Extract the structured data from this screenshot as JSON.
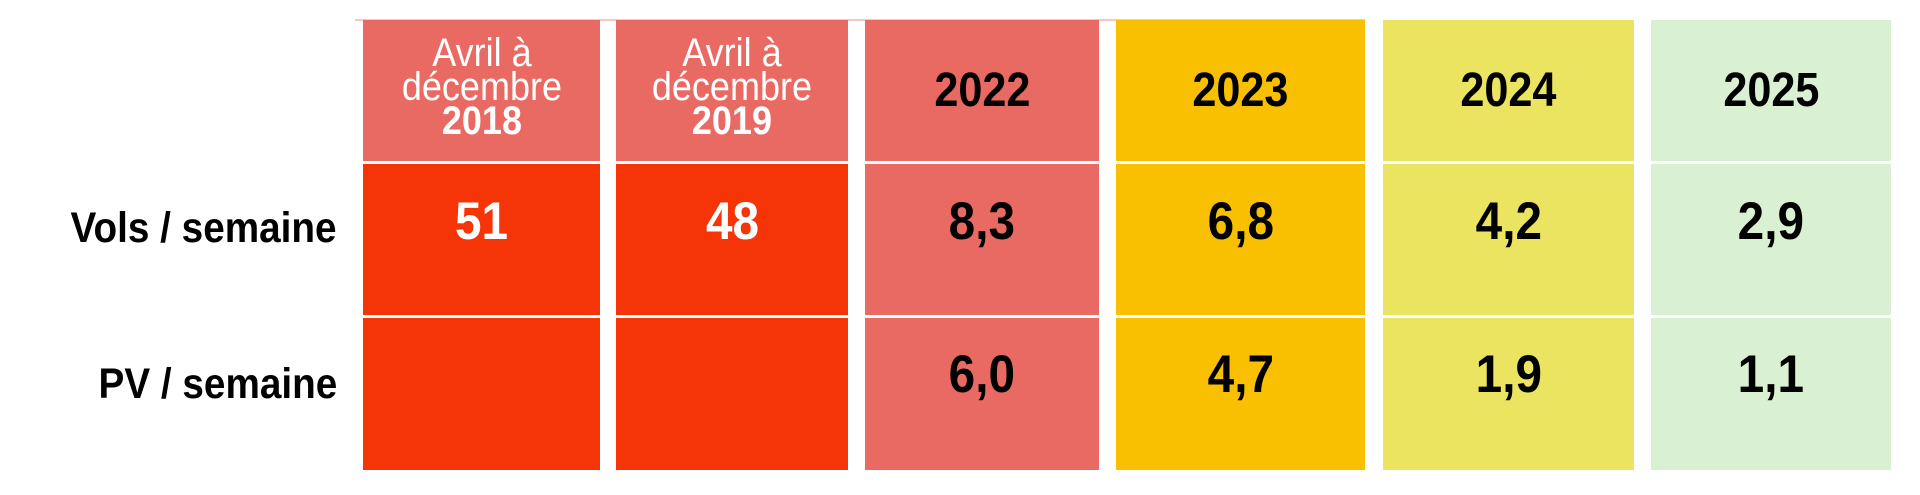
{
  "columns": [
    {
      "line1": "Avril à",
      "line2": "décembre",
      "year": "2018",
      "header_color": "#E96A63",
      "cell_color": "#F53507",
      "text_color": "#FFFFFF"
    },
    {
      "line1": "Avril à",
      "line2": "décembre",
      "year": "2019",
      "header_color": "#E96A63",
      "cell_color": "#F53507",
      "text_color": "#FFFFFF"
    },
    {
      "year": "2022",
      "header_color": "#E96A63",
      "cell_color": "#E96A63",
      "text_color": "#000000"
    },
    {
      "year": "2023",
      "header_color": "#F8C000",
      "cell_color": "#F8C000",
      "text_color": "#000000"
    },
    {
      "year": "2024",
      "header_color": "#EBE460",
      "cell_color": "#EBE460",
      "text_color": "#000000"
    },
    {
      "year": "2025",
      "header_color": "#DAF0D2",
      "cell_color": "#DAF0D2",
      "text_color": "#000000"
    }
  ],
  "rows": [
    {
      "label": "Vols / semaine",
      "values": [
        "51",
        "48",
        "8,3",
        "6,8",
        "4,2",
        "2,9"
      ]
    },
    {
      "label": "PV / semaine",
      "values": [
        "",
        "",
        "6,0",
        "4,7",
        "1,9",
        "1,1"
      ]
    }
  ]
}
